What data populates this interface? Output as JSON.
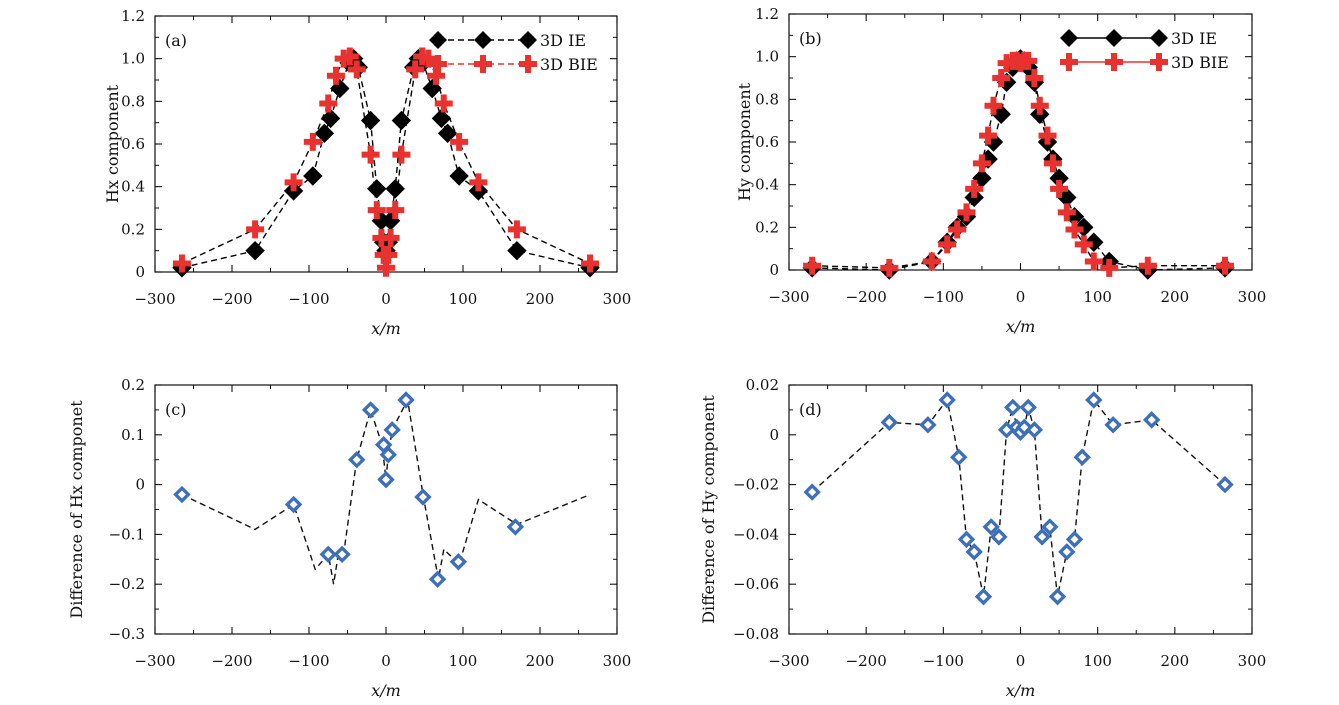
{
  "colors": {
    "ie": "#000000",
    "bie": "#e8322f",
    "diff_fill": "#3e6fb9",
    "diff_line": "#111111"
  },
  "chart_data": [
    {
      "panel": "(a)",
      "type": "line",
      "xlabel": "x/m",
      "ylabel": "Hx component",
      "xlim": [
        -300,
        300
      ],
      "ylim": [
        0,
        1.2
      ],
      "xticks": [
        "−300",
        "−200",
        "−100",
        "0",
        "100",
        "200",
        "300"
      ],
      "yticks": [
        "0",
        "0.2",
        "0.4",
        "0.6",
        "0.8",
        "1.0",
        "1.2"
      ],
      "legend": "top-right",
      "series": [
        {
          "name": "3D IE",
          "marker": "diamond",
          "x": [
            -265,
            -170,
            -120,
            -95,
            -80,
            -72,
            -60,
            -48,
            -42,
            -36,
            -20,
            -12,
            -6,
            -3,
            0,
            3,
            6,
            12,
            20,
            36,
            42,
            48,
            60,
            72,
            80,
            95,
            120,
            170,
            265
          ],
          "y": [
            0.02,
            0.1,
            0.38,
            0.45,
            0.65,
            0.72,
            0.86,
            0.98,
            1.0,
            0.96,
            0.71,
            0.39,
            0.24,
            0.14,
            0.1,
            0.14,
            0.24,
            0.39,
            0.71,
            0.96,
            1.0,
            0.98,
            0.86,
            0.72,
            0.65,
            0.45,
            0.38,
            0.1,
            0.02
          ]
        },
        {
          "name": "3D BIE",
          "marker": "cross",
          "x": [
            -265,
            -170,
            -120,
            -95,
            -75,
            -65,
            -55,
            -47,
            -38,
            -20,
            -12,
            -6,
            -3,
            0,
            3,
            6,
            12,
            20,
            38,
            47,
            55,
            65,
            75,
            95,
            120,
            170,
            265
          ],
          "y": [
            0.04,
            0.2,
            0.42,
            0.61,
            0.79,
            0.92,
            1.0,
            1.01,
            0.95,
            0.55,
            0.29,
            0.16,
            0.08,
            0.02,
            0.08,
            0.16,
            0.29,
            0.55,
            0.95,
            1.01,
            1.0,
            0.92,
            0.79,
            0.61,
            0.42,
            0.2,
            0.04
          ]
        }
      ]
    },
    {
      "panel": "(b)",
      "type": "line",
      "xlabel": "x/m",
      "ylabel": "Hy component",
      "xlim": [
        -300,
        300
      ],
      "ylim": [
        0,
        1.2
      ],
      "xticks": [
        "−300",
        "−200",
        "−100",
        "0",
        "100",
        "200",
        "300"
      ],
      "yticks": [
        "0",
        "0.2",
        "0.4",
        "0.6",
        "0.8",
        "1.0",
        "1.2"
      ],
      "legend": "top-right",
      "series": [
        {
          "name": "3D IE",
          "marker": "diamond",
          "x": [
            -270,
            -170,
            -115,
            -95,
            -82,
            -70,
            -60,
            -50,
            -42,
            -35,
            -25,
            -18,
            -10,
            -5,
            0,
            5,
            10,
            18,
            25,
            35,
            42,
            50,
            60,
            70,
            82,
            95,
            115,
            165,
            265
          ],
          "y": [
            0.01,
            0.0,
            0.04,
            0.13,
            0.2,
            0.25,
            0.34,
            0.43,
            0.52,
            0.6,
            0.73,
            0.88,
            0.95,
            0.98,
            0.99,
            0.98,
            0.95,
            0.88,
            0.73,
            0.6,
            0.52,
            0.43,
            0.34,
            0.25,
            0.2,
            0.13,
            0.04,
            0.0,
            0.01
          ]
        },
        {
          "name": "3D BIE",
          "marker": "cross",
          "x": [
            -270,
            -170,
            -115,
            -95,
            -82,
            -70,
            -60,
            -50,
            -42,
            -35,
            -25,
            -18,
            -10,
            -5,
            0,
            5,
            10,
            18,
            25,
            35,
            42,
            50,
            60,
            70,
            82,
            95,
            115,
            165,
            265
          ],
          "y": [
            0.02,
            0.01,
            0.04,
            0.12,
            0.19,
            0.27,
            0.38,
            0.5,
            0.63,
            0.77,
            0.9,
            0.97,
            0.98,
            0.98,
            0.97,
            0.98,
            0.98,
            0.9,
            0.77,
            0.63,
            0.5,
            0.38,
            0.27,
            0.19,
            0.12,
            0.04,
            0.01,
            0.02,
            0.02
          ]
        }
      ]
    },
    {
      "panel": "(c)",
      "type": "scatter",
      "xlabel": "x/m",
      "ylabel": "Difference of Hx componet",
      "xlim": [
        -300,
        300
      ],
      "ylim": [
        -0.3,
        0.2
      ],
      "xticks": [
        "−300",
        "−200",
        "−100",
        "0",
        "100",
        "200",
        "300"
      ],
      "yticks": [
        "−0.3",
        "−0.2",
        "−0.1",
        "0",
        "0.1",
        "0.2"
      ],
      "series": [
        {
          "name": "",
          "marker": "diamond",
          "with_line": true,
          "line_x": [
            -265,
            -170,
            -120,
            -92,
            -75,
            -68,
            -62,
            -55,
            -38,
            -20,
            -5,
            0,
            3,
            8,
            28,
            48,
            68,
            75,
            95,
            120,
            170,
            265
          ],
          "line_y": [
            -0.02,
            -0.09,
            -0.04,
            -0.17,
            -0.14,
            -0.2,
            -0.14,
            -0.14,
            0.05,
            0.15,
            0.08,
            0.01,
            0.06,
            0.11,
            0.17,
            -0.02,
            -0.19,
            -0.13,
            -0.16,
            -0.03,
            -0.08,
            -0.02
          ],
          "x": [
            -265,
            -120,
            -75,
            -57,
            -38,
            -20,
            -3,
            0,
            3,
            8,
            26,
            48,
            67,
            94,
            168
          ],
          "y": [
            -0.02,
            -0.04,
            -0.14,
            -0.14,
            0.05,
            0.15,
            0.08,
            0.01,
            0.06,
            0.11,
            0.17,
            -0.025,
            -0.19,
            -0.155,
            -0.085
          ]
        }
      ]
    },
    {
      "panel": "(d)",
      "type": "scatter",
      "xlabel": "x/m",
      "ylabel": "Difference of Hy component",
      "xlim": [
        -300,
        300
      ],
      "ylim": [
        -0.08,
        0.02
      ],
      "xticks": [
        "−300",
        "−200",
        "−100",
        "0",
        "100",
        "200",
        "300"
      ],
      "yticks": [
        "−0.08",
        "−0.06",
        "−0.04",
        "−0.02",
        "0",
        "0.02"
      ],
      "series": [
        {
          "name": "",
          "marker": "diamond",
          "with_line": true,
          "line_x": [
            -270,
            -170,
            -120,
            -95,
            -80,
            -70,
            -60,
            -48,
            -38,
            -28,
            -18,
            -10,
            -5,
            0,
            5,
            10,
            18,
            28,
            38,
            48,
            60,
            70,
            80,
            95,
            120,
            170,
            265
          ],
          "line_y": [
            -0.023,
            0.005,
            0.004,
            0.014,
            -0.009,
            -0.042,
            -0.047,
            -0.065,
            -0.037,
            -0.041,
            0.002,
            0.011,
            0.003,
            0.001,
            0.003,
            0.011,
            0.002,
            -0.041,
            -0.037,
            -0.065,
            -0.047,
            -0.042,
            -0.009,
            0.014,
            0.004,
            0.006,
            -0.02
          ],
          "x": [
            -270,
            -170,
            -120,
            -95,
            -80,
            -70,
            -60,
            -48,
            -38,
            -28,
            -18,
            -10,
            -5,
            0,
            5,
            10,
            18,
            28,
            38,
            48,
            60,
            70,
            80,
            95,
            120,
            170,
            265
          ],
          "y": [
            -0.023,
            0.005,
            0.004,
            0.014,
            -0.009,
            -0.042,
            -0.047,
            -0.065,
            -0.037,
            -0.041,
            0.002,
            0.011,
            0.003,
            0.001,
            0.003,
            0.011,
            0.002,
            -0.041,
            -0.037,
            -0.065,
            -0.047,
            -0.042,
            -0.009,
            0.014,
            0.004,
            0.006,
            -0.02
          ]
        }
      ]
    }
  ]
}
